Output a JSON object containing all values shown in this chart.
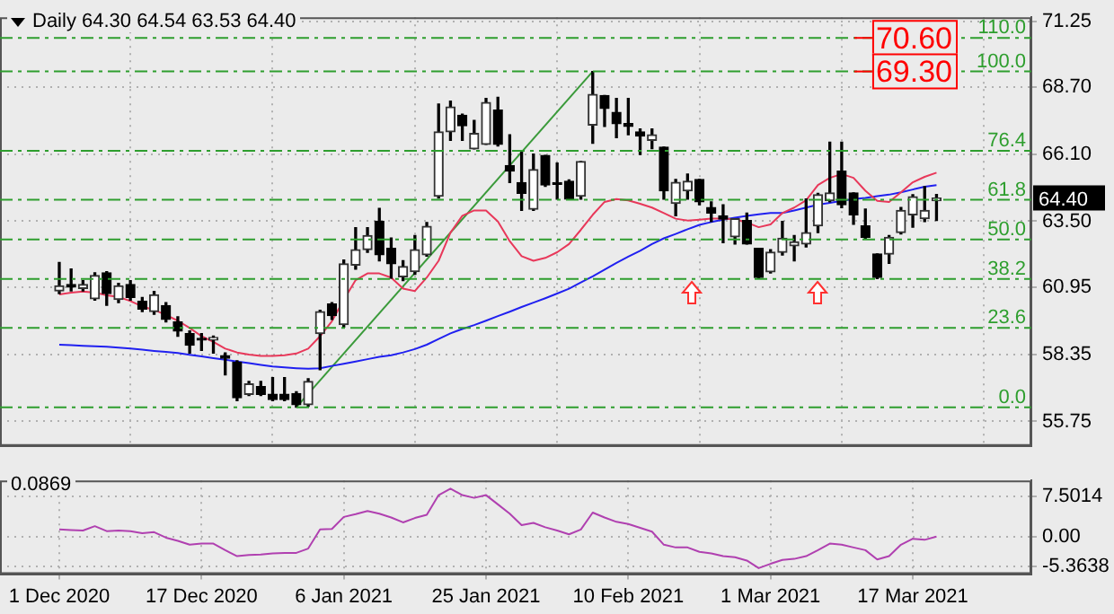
{
  "chart_data": [
    {
      "type": "candlestick",
      "title": "Daily  64.30 64.54 63.53 64.40",
      "ohlc": [
        [
          60.8,
          61.9,
          60.7,
          61.0
        ],
        [
          61.05,
          61.65,
          60.8,
          60.95
        ],
        [
          60.9,
          61.2,
          60.8,
          61.05
        ],
        [
          60.5,
          61.5,
          60.45,
          61.4
        ],
        [
          61.5,
          61.55,
          60.25,
          60.7
        ],
        [
          60.47,
          61.1,
          60.35,
          61.0
        ],
        [
          61.05,
          61.2,
          60.45,
          60.55
        ],
        [
          60.4,
          60.55,
          60.0,
          60.1
        ],
        [
          60.0,
          60.78,
          59.9,
          60.65
        ],
        [
          60.24,
          60.35,
          59.6,
          59.7
        ],
        [
          59.6,
          59.8,
          59.05,
          59.25
        ],
        [
          59.15,
          59.25,
          58.4,
          58.7
        ],
        [
          58.95,
          59.15,
          58.5,
          58.9
        ],
        [
          58.9,
          59.05,
          58.4,
          59.0
        ],
        [
          58.3,
          58.4,
          57.55,
          58.2
        ],
        [
          58.05,
          58.1,
          56.55,
          56.67
        ],
        [
          56.8,
          57.3,
          56.75,
          57.2
        ],
        [
          57.1,
          57.3,
          56.75,
          56.8
        ],
        [
          56.8,
          57.45,
          56.55,
          56.6
        ],
        [
          56.8,
          57.45,
          56.55,
          56.6
        ],
        [
          56.83,
          56.9,
          56.3,
          56.4
        ],
        [
          56.4,
          57.4,
          56.34,
          57.3
        ],
        [
          59.15,
          60.05,
          57.75,
          60.0
        ],
        [
          60.3,
          60.35,
          59.7,
          59.85
        ],
        [
          59.5,
          62.0,
          59.4,
          61.85
        ],
        [
          61.8,
          63.25,
          61.65,
          62.4
        ],
        [
          62.4,
          63.25,
          62.3,
          62.95
        ],
        [
          63.5,
          64.0,
          61.97,
          62.2
        ],
        [
          62.45,
          62.85,
          61.3,
          61.85
        ],
        [
          61.35,
          61.97,
          61.2,
          61.75
        ],
        [
          61.55,
          62.95,
          61.45,
          62.4
        ],
        [
          62.2,
          63.45,
          62.15,
          63.3
        ],
        [
          64.47,
          68.04,
          64.4,
          66.96
        ],
        [
          66.96,
          68.15,
          66.63,
          67.93
        ],
        [
          67.6,
          67.65,
          66.63,
          67.2
        ],
        [
          66.3,
          67.4,
          66.3,
          66.9
        ],
        [
          66.48,
          68.26,
          66.48,
          68.1
        ],
        [
          67.8,
          68.3,
          66.42,
          66.48
        ],
        [
          65.66,
          66.85,
          65.0,
          65.44
        ],
        [
          65.0,
          66.2,
          63.92,
          64.58
        ],
        [
          63.97,
          66.1,
          63.92,
          65.5
        ],
        [
          66.05,
          66.05,
          64.85,
          64.9
        ],
        [
          65.0,
          65.75,
          64.36,
          64.93
        ],
        [
          65.05,
          65.1,
          64.36,
          64.36
        ],
        [
          64.47,
          65.81,
          64.36,
          65.81
        ],
        [
          67.22,
          69.3,
          66.52,
          68.41
        ],
        [
          68.37,
          68.37,
          67.17,
          67.87
        ],
        [
          67.72,
          68.26,
          66.74,
          67.28
        ],
        [
          67.28,
          68.26,
          66.85,
          67.17
        ],
        [
          66.96,
          67.07,
          66.09,
          66.8
        ],
        [
          66.63,
          67.07,
          66.31,
          66.85
        ],
        [
          66.37,
          66.37,
          64.36,
          64.68
        ],
        [
          64.19,
          65.12,
          63.71,
          65.01
        ],
        [
          64.68,
          65.33,
          64.36,
          65.05
        ],
        [
          65.12,
          65.12,
          64.14,
          64.25
        ],
        [
          64.03,
          64.25,
          63.49,
          63.82
        ],
        [
          63.71,
          64.14,
          62.67,
          63.58
        ],
        [
          62.9,
          63.6,
          62.62,
          63.6
        ],
        [
          63.53,
          63.82,
          62.62,
          62.62
        ],
        [
          62.45,
          62.45,
          61.28,
          61.32
        ],
        [
          61.54,
          62.4,
          61.5,
          62.3
        ],
        [
          62.3,
          63.49,
          62.19,
          62.84
        ],
        [
          62.55,
          62.95,
          61.97,
          62.7
        ],
        [
          62.62,
          64.36,
          62.51,
          63.06
        ],
        [
          63.32,
          64.58,
          63.06,
          64.53
        ],
        [
          64.3,
          66.56,
          64.25,
          64.6
        ],
        [
          65.44,
          66.56,
          64.03,
          64.14
        ],
        [
          64.6,
          64.6,
          63.38,
          63.75
        ],
        [
          63.32,
          63.97,
          62.84,
          62.88
        ],
        [
          62.23,
          62.23,
          61.28,
          61.32
        ],
        [
          62.23,
          62.95,
          61.87,
          62.88
        ],
        [
          63.06,
          64.03,
          63.01,
          63.92
        ],
        [
          63.75,
          64.53,
          63.27,
          64.45
        ],
        [
          63.6,
          64.84,
          63.49,
          63.92
        ],
        [
          64.3,
          64.54,
          63.53,
          64.4
        ]
      ],
      "series": [
        {
          "type": "line",
          "color": "#e8385a",
          "values": [
            60.67,
            60.74,
            60.78,
            60.74,
            60.63,
            60.57,
            60.41,
            60.2,
            60.07,
            59.87,
            59.65,
            59.37,
            59.05,
            58.83,
            58.57,
            58.42,
            58.34,
            58.29,
            58.29,
            58.31,
            58.38,
            58.57,
            59.05,
            59.63,
            60.46,
            61.22,
            61.48,
            61.48,
            61.32,
            60.89,
            60.8,
            61.32,
            61.97,
            63.06,
            63.71,
            63.92,
            63.92,
            63.49,
            62.73,
            62.15,
            61.97,
            62.08,
            62.3,
            62.62,
            63.17,
            63.75,
            64.25,
            64.36,
            64.31,
            64.18,
            64.03,
            63.82,
            63.6,
            63.53,
            63.56,
            63.6,
            63.6,
            63.58,
            63.45,
            63.27,
            63.38,
            63.82,
            64.03,
            64.31,
            64.9,
            65.18,
            65.33,
            65.18,
            64.68,
            64.29,
            64.25,
            64.62,
            65.01,
            65.22,
            65.38
          ]
        },
        {
          "type": "line",
          "color": "#2020f0",
          "values": [
            58.72,
            58.7,
            58.68,
            58.66,
            58.64,
            58.61,
            58.57,
            58.53,
            58.48,
            58.44,
            58.4,
            58.33,
            58.27,
            58.2,
            58.14,
            58.07,
            58.01,
            57.94,
            57.88,
            57.84,
            57.81,
            57.79,
            57.81,
            57.9,
            57.98,
            58.07,
            58.16,
            58.25,
            58.31,
            58.42,
            58.55,
            58.72,
            58.94,
            59.16,
            59.33,
            59.48,
            59.65,
            59.83,
            60.0,
            60.18,
            60.35,
            60.52,
            60.7,
            60.89,
            61.13,
            61.37,
            61.63,
            61.89,
            62.13,
            62.36,
            62.62,
            62.84,
            63.01,
            63.19,
            63.36,
            63.47,
            63.56,
            63.64,
            63.71,
            63.77,
            63.82,
            63.82,
            63.92,
            64.03,
            64.14,
            64.21,
            64.29,
            64.36,
            64.4,
            64.47,
            64.53,
            64.62,
            64.73,
            64.84,
            64.9
          ]
        },
        {
          "type": "line",
          "color": "#3a9a3a",
          "values": [
            null,
            null,
            null,
            null,
            null,
            null,
            null,
            null,
            null,
            null,
            null,
            null,
            null,
            null,
            null,
            null,
            null,
            null,
            null,
            null,
            56.3,
            null,
            null,
            null,
            null,
            null,
            null,
            null,
            null,
            null,
            null,
            null,
            null,
            null,
            null,
            null,
            null,
            null,
            null,
            null,
            null,
            null,
            null,
            null,
            null,
            69.3,
            null,
            null,
            null,
            null,
            null,
            null,
            null,
            null,
            null,
            null,
            null,
            null,
            null,
            null,
            null,
            null,
            null,
            null,
            null,
            null,
            null,
            null,
            null,
            null,
            null,
            null,
            null,
            null,
            null
          ]
        }
      ],
      "ylim": [
        54.8,
        71.4
      ],
      "yticks": [
        71.25,
        {
          "value": 68.7,
          "label": "68.70"
        },
        {
          "value": 66.1,
          "label": "66.10"
        },
        {
          "value": 63.5,
          "label": "63.50"
        },
        60.95,
        58.35,
        55.75
      ],
      "ref_lines": [
        {
          "axis": "y",
          "value": 70.6,
          "label": "70.60",
          "color": "#2e9e2e",
          "line_style": "dashed"
        },
        {
          "axis": "y",
          "value": 69.3,
          "label": "69.30",
          "color": "#2e9e2e",
          "line_style": "dashed"
        },
        {
          "axis": "y",
          "value": 66.23,
          "color": "#2e9e2e",
          "line_style": "dashed"
        },
        {
          "axis": "y",
          "value": 64.33,
          "color": "#2e9e2e",
          "line_style": "dashed"
        },
        {
          "axis": "y",
          "value": 62.8,
          "color": "#2e9e2e",
          "line_style": "dashed"
        },
        {
          "axis": "y",
          "value": 61.27,
          "color": "#2e9e2e",
          "line_style": "dashed"
        },
        {
          "axis": "y",
          "value": 59.37,
          "color": "#2e9e2e",
          "line_style": "dashed"
        },
        {
          "axis": "y",
          "value": 56.3,
          "color": "#2e9e2e",
          "line_style": "dashed"
        }
      ],
      "annotations": [
        {
          "text": "110.0",
          "y": 70.6
        },
        {
          "text": "100.0",
          "y": 69.3
        },
        {
          "text": "76.4",
          "y": 66.23
        },
        {
          "text": "61.8",
          "y": 64.33
        },
        {
          "text": "50.0",
          "y": 62.8
        },
        {
          "text": "38.2",
          "y": 61.27
        },
        {
          "text": "23.6",
          "y": 59.37
        },
        {
          "text": "0.0",
          "y": 56.3
        },
        "64.40"
      ],
      "grid": true,
      "marker": "none",
      "tick_labels": "y"
    },
    {
      "type": "line",
      "title": "0.0869",
      "categories": [
        "1 Dec 2020",
        null,
        null,
        null,
        null,
        null,
        null,
        null,
        null,
        null,
        null,
        null,
        "17 Dec 2020",
        null,
        null,
        null,
        null,
        null,
        null,
        null,
        null,
        null,
        null,
        null,
        "6 Jan 2021",
        null,
        null,
        null,
        null,
        null,
        null,
        null,
        null,
        null,
        null,
        null,
        "25 Jan 2021",
        null,
        null,
        null,
        null,
        null,
        null,
        null,
        null,
        null,
        null,
        null,
        "10 Feb 2021",
        null,
        null,
        null,
        null,
        null,
        null,
        null,
        null,
        null,
        null,
        null,
        "1 Mar 2021",
        null,
        null,
        null,
        null,
        null,
        null,
        null,
        null,
        null,
        null,
        null,
        "17 Mar 2021",
        null,
        null
      ],
      "series": [
        {
          "color": "#b040b0",
          "values": [
            1.4,
            1.3,
            1.2,
            2.0,
            1.1,
            1.2,
            1.1,
            0.7,
            0.9,
            -0.1,
            -0.7,
            -1.4,
            -1.2,
            -1.2,
            -2.4,
            -3.5,
            -3.3,
            -3.2,
            -3.0,
            -2.9,
            -2.9,
            -2.1,
            1.4,
            1.5,
            3.7,
            4.2,
            4.8,
            4.3,
            3.6,
            2.7,
            3.5,
            4.1,
            7.7,
            8.9,
            7.7,
            7.2,
            7.7,
            6.0,
            4.3,
            2.2,
            2.6,
            1.8,
            1.2,
            0.5,
            1.4,
            4.5,
            3.6,
            2.8,
            2.4,
            1.7,
            1.0,
            -1.4,
            -1.9,
            -1.9,
            -2.7,
            -3.0,
            -3.5,
            -3.7,
            -4.3,
            -5.7,
            -4.9,
            -4.2,
            -4.0,
            -3.5,
            -2.4,
            -1.2,
            -1.4,
            -1.9,
            -2.4,
            -4.1,
            -3.5,
            -1.4,
            -0.3,
            -0.5,
            0.1
          ]
        }
      ],
      "ylim": [
        -6.8,
        10.4
      ],
      "yticks": [
        7.5014,
        {
          "value": 0,
          "label": "0.00"
        },
        -5.3638
      ],
      "grid": true,
      "marker": "none"
    }
  ]
}
